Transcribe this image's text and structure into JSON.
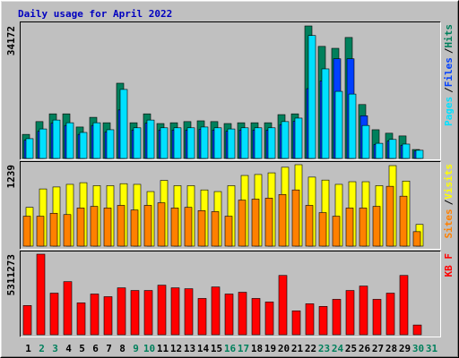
{
  "chart_data": [
    {
      "type": "bar",
      "title": "Daily usage for April 2022",
      "title_color": "#0000c0",
      "ylim": [
        0,
        34172
      ],
      "yticks": [
        34172
      ],
      "legend_separator": "/",
      "series": [
        {
          "name": "Hits",
          "color": "#00805c",
          "values": [
            6200,
            9500,
            11500,
            11500,
            8100,
            10600,
            9200,
            19400,
            9200,
            11500,
            9000,
            9200,
            9500,
            9700,
            9500,
            9000,
            9200,
            9200,
            9200,
            11300,
            11500,
            34172,
            28900,
            28400,
            31200,
            13900,
            7400,
            6500,
            5800,
            2300,
            null
          ]
        },
        {
          "name": "Files",
          "color": "#0040ff",
          "values": [
            4700,
            7000,
            9100,
            8500,
            6200,
            8500,
            6800,
            12500,
            7300,
            9100,
            7300,
            7300,
            7300,
            7500,
            7300,
            7000,
            7300,
            7300,
            7300,
            8700,
            9600,
            18000,
            20000,
            25700,
            25700,
            11000,
            3600,
            4500,
            3400,
            1900,
            null
          ]
        },
        {
          "name": "Pages",
          "color": "#00e0ff",
          "values": [
            5100,
            7600,
            9900,
            9200,
            6700,
            9200,
            7400,
            17800,
            7900,
            9900,
            7900,
            7900,
            7900,
            8100,
            7900,
            7600,
            7900,
            7900,
            7900,
            9500,
            10400,
            31700,
            23100,
            17300,
            16600,
            8500,
            3900,
            4900,
            3700,
            2100,
            null
          ]
        }
      ]
    },
    {
      "type": "bar",
      "ylim": [
        0,
        1239
      ],
      "yticks": [
        1239
      ],
      "legend_separator": "/",
      "series": [
        {
          "name": "Visits",
          "color": "#ffff00",
          "values": [
            590,
            870,
            900,
            940,
            965,
            920,
            920,
            950,
            940,
            830,
            1000,
            920,
            920,
            855,
            830,
            920,
            1075,
            1090,
            1115,
            1200,
            1239,
            1050,
            1005,
            940,
            980,
            980,
            920,
            1225,
            990,
            330,
            null
          ]
        },
        {
          "name": "Sites",
          "color": "#ff8000",
          "values": [
            455,
            455,
            500,
            480,
            580,
            605,
            580,
            620,
            550,
            620,
            660,
            580,
            590,
            540,
            525,
            455,
            700,
            715,
            730,
            785,
            855,
            620,
            510,
            455,
            580,
            580,
            605,
            910,
            760,
            220,
            null
          ]
        }
      ]
    },
    {
      "type": "bar",
      "ylim": [
        0,
        5311273
      ],
      "yticks": [
        5311273
      ],
      "categories": [
        "1",
        "2",
        "3",
        "4",
        "5",
        "6",
        "7",
        "8",
        "9",
        "10",
        "11",
        "12",
        "13",
        "14",
        "15",
        "16",
        "17",
        "18",
        "19",
        "20",
        "21",
        "22",
        "23",
        "24",
        "25",
        "26",
        "27",
        "28",
        "29",
        "30",
        "31"
      ],
      "category_colors": [
        "#000000",
        "#00805c",
        "#00805c",
        "#000000",
        "#000000",
        "#000000",
        "#000000",
        "#000000",
        "#00805c",
        "#00805c",
        "#000000",
        "#000000",
        "#000000",
        "#000000",
        "#000000",
        "#00805c",
        "#00805c",
        "#000000",
        "#000000",
        "#000000",
        "#000000",
        "#000000",
        "#00805c",
        "#00805c",
        "#000000",
        "#000000",
        "#000000",
        "#000000",
        "#000000",
        "#00805c",
        "#00805c"
      ],
      "series": [
        {
          "name": "KB F",
          "color": "#ff0000",
          "values": [
            1926000,
            5311273,
            2743000,
            3502000,
            2101000,
            2685000,
            2510000,
            3093000,
            2918000,
            2918000,
            3268000,
            3093000,
            3035000,
            2393000,
            3151000,
            2685000,
            2801000,
            2393000,
            2160000,
            3910000,
            1576000,
            2043000,
            1867000,
            2335000,
            2918000,
            3210000,
            2335000,
            2743000,
            3910000,
            642000,
            null
          ]
        }
      ]
    }
  ]
}
